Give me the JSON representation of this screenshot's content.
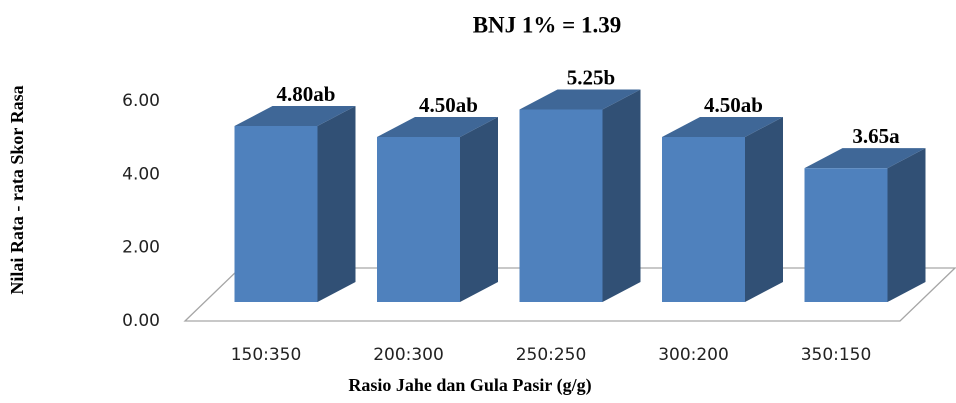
{
  "chart_data": {
    "type": "bar3d",
    "title": "BNJ 1% = 1.39",
    "x_label": "Rasio Jahe dan Gula Pasir (g/g)",
    "y_label": "Nilai  Rata - rata Skor Rasa",
    "categories": [
      "150:350",
      "200:300",
      "250:250",
      "300:200",
      "350:150"
    ],
    "values": [
      4.8,
      4.5,
      5.25,
      4.5,
      3.65
    ],
    "value_labels": [
      "4.80ab",
      "4.50ab",
      "5.25b",
      "4.50ab",
      "3.65a"
    ],
    "color": "#4f81bd",
    "ylim": [
      0,
      6
    ],
    "yticks": [
      {
        "value": 0,
        "label": "0.00"
      },
      {
        "value": 2,
        "label": "2.00"
      },
      {
        "value": 4,
        "label": "4.00"
      },
      {
        "value": 6,
        "label": "6.00"
      }
    ]
  }
}
